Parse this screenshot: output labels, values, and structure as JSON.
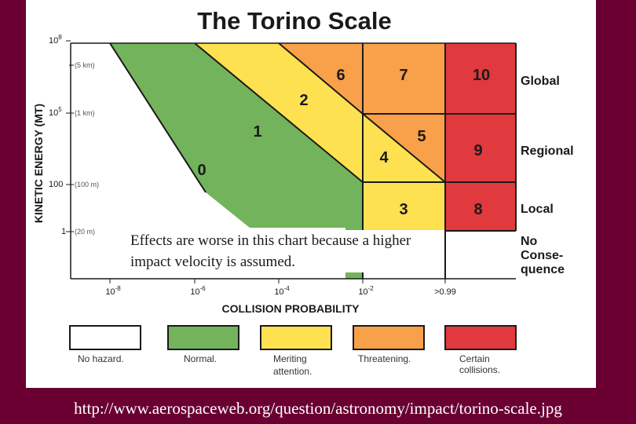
{
  "title": "The Torino Scale",
  "y_axis": {
    "label": "KINETIC ENERGY (MT)",
    "ticks": [
      {
        "value": "10^8",
        "base": "10",
        "exp": "8",
        "size": ""
      },
      {
        "value": "",
        "base": "",
        "exp": "",
        "size": "(5 km)"
      },
      {
        "value": "10^5",
        "base": "10",
        "exp": "5",
        "size": "(1 km)"
      },
      {
        "value": "100",
        "base": "100",
        "exp": "",
        "size": "(100 m)"
      },
      {
        "value": "1",
        "base": "1",
        "exp": "",
        "size": "(20 m)"
      }
    ]
  },
  "x_axis": {
    "label": "COLLISION PROBABILITY",
    "ticks": [
      {
        "base": "10",
        "exp": "-8"
      },
      {
        "base": "10",
        "exp": "-6"
      },
      {
        "base": "10",
        "exp": "-4"
      },
      {
        "base": "10",
        "exp": "-2"
      },
      {
        "base": ">0.99",
        "exp": ""
      }
    ]
  },
  "zones": [
    "0",
    "1",
    "2",
    "3",
    "4",
    "5",
    "6",
    "7",
    "8",
    "9",
    "10"
  ],
  "row_labels": {
    "global": "Global",
    "regional": "Regional",
    "local": "Local",
    "no_consequence": [
      "No",
      "Conse-",
      "quence"
    ]
  },
  "legend": [
    {
      "key": "no-hazard",
      "label": [
        "No hazard."
      ],
      "color": "#ffffff"
    },
    {
      "key": "normal",
      "label": [
        "Normal."
      ],
      "color": "#73b35c"
    },
    {
      "key": "meriting-attention",
      "label": [
        "Meriting",
        "attention."
      ],
      "color": "#fde150"
    },
    {
      "key": "threatening",
      "label": [
        "Threatening."
      ],
      "color": "#f8a04a"
    },
    {
      "key": "certain-collisions",
      "label": [
        "Certain",
        "collisions."
      ],
      "color": "#e0393e"
    }
  ],
  "note": "Effects are worse in this chart because a higher impact velocity is assumed.",
  "caption": "http://www.aerospaceweb.org/question/astronomy/impact/torino-scale.jpg",
  "colors": {
    "background": "#6a0032",
    "green": "#73b35c",
    "yellow": "#fde150",
    "orange": "#f8a04a",
    "red": "#e0393e"
  }
}
